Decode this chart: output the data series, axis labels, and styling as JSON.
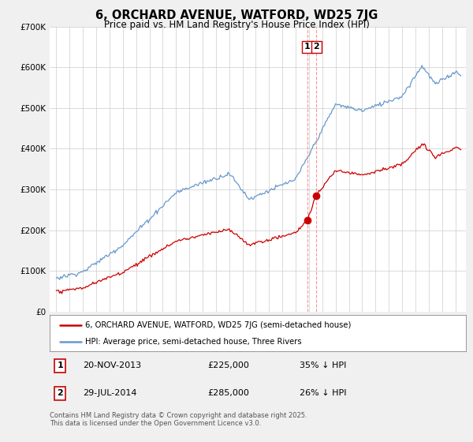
{
  "title": "6, ORCHARD AVENUE, WATFORD, WD25 7JG",
  "subtitle": "Price paid vs. HM Land Registry's House Price Index (HPI)",
  "ylim": [
    0,
    700000
  ],
  "yticks": [
    0,
    100000,
    200000,
    300000,
    400000,
    500000,
    600000,
    700000
  ],
  "ytick_labels": [
    "£0",
    "£100K",
    "£200K",
    "£300K",
    "£400K",
    "£500K",
    "£600K",
    "£700K"
  ],
  "hpi_color": "#6699cc",
  "price_color": "#cc0000",
  "vline_color": "#ff8888",
  "transaction1_date": "20-NOV-2013",
  "transaction1_price": 225000,
  "transaction1_label": "35% ↓ HPI",
  "transaction1_x": 2013.88,
  "transaction2_date": "29-JUL-2014",
  "transaction2_price": 285000,
  "transaction2_label": "26% ↓ HPI",
  "transaction2_x": 2014.55,
  "legend_line1": "6, ORCHARD AVENUE, WATFORD, WD25 7JG (semi-detached house)",
  "legend_line2": "HPI: Average price, semi-detached house, Three Rivers",
  "footnote": "Contains HM Land Registry data © Crown copyright and database right 2025.\nThis data is licensed under the Open Government Licence v3.0.",
  "bg_color": "#f0f0f0",
  "plot_bg_color": "#ffffff"
}
